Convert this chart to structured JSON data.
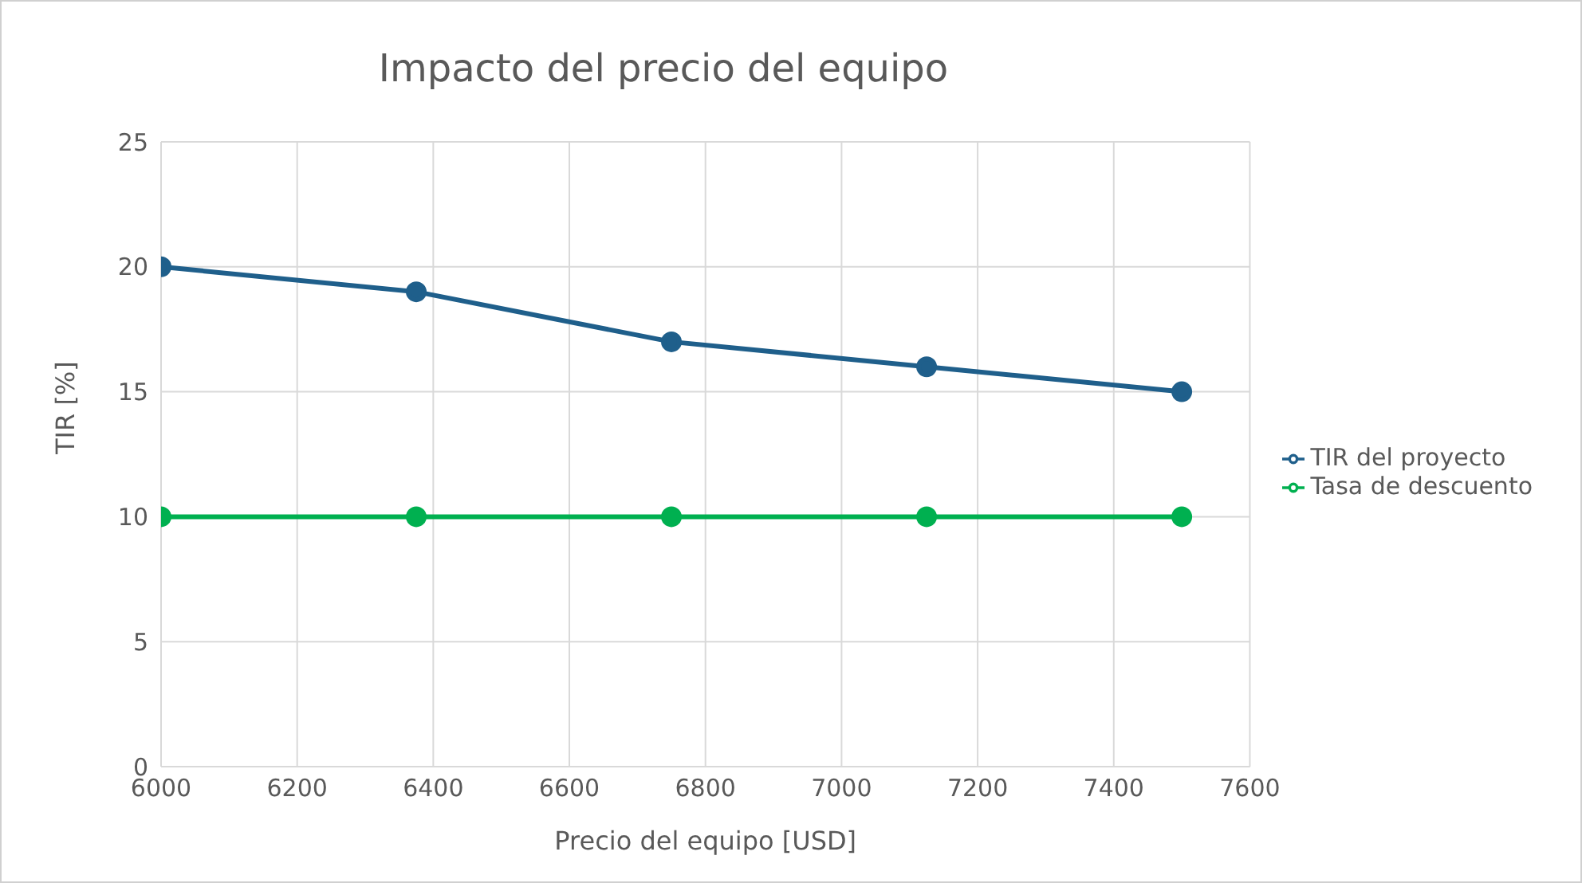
{
  "chart_data": {
    "type": "line",
    "title": "Impacto del precio del equipo",
    "xlabel": "Precio del equipo [USD]",
    "ylabel": "TIR [%]",
    "x": [
      6000,
      6375,
      6750,
      7125,
      7500
    ],
    "series": [
      {
        "name": "TIR del proyecto",
        "color": "#1f5f8b",
        "values": [
          20,
          19,
          17,
          16,
          15
        ]
      },
      {
        "name": "Tasa de descuento",
        "color": "#00b050",
        "values": [
          10,
          10,
          10,
          10,
          10
        ]
      }
    ],
    "xlim": [
      6000,
      7600
    ],
    "xticks": [
      6000,
      6200,
      6400,
      6600,
      6800,
      7000,
      7200,
      7400,
      7600
    ],
    "ylim": [
      0,
      25
    ],
    "yticks": [
      0,
      5,
      10,
      15,
      20,
      25
    ],
    "grid": true,
    "legend": "right",
    "marker": "circle",
    "line_style": "solid"
  }
}
